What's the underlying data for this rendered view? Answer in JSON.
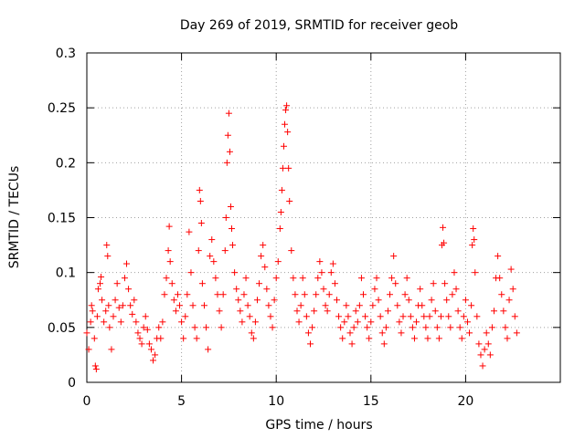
{
  "chart_data": {
    "type": "scatter",
    "title": "Day 269 of 2019, SRMTID for receiver geob",
    "xlabel": "GPS time / hours",
    "ylabel": "SRMTID / TECUs",
    "xlim": [
      0,
      25
    ],
    "ylim": [
      0,
      0.3
    ],
    "xticks": [
      0,
      5,
      10,
      15,
      20
    ],
    "yticks": [
      0,
      0.05,
      0.1,
      0.15,
      0.2,
      0.25,
      0.3
    ],
    "xtick_labels": [
      "0",
      "5",
      "10",
      "15",
      "20"
    ],
    "ytick_labels": [
      "0",
      "0.05",
      "0.1",
      "0.15",
      "0.2",
      "0.25",
      "0.3"
    ],
    "grid": true,
    "marker": "+",
    "marker_color": "#ff0000",
    "series": [
      {
        "name": "SRMTID",
        "points": [
          [
            0.0,
            0.045
          ],
          [
            0.1,
            0.03
          ],
          [
            0.2,
            0.055
          ],
          [
            0.25,
            0.07
          ],
          [
            0.3,
            0.065
          ],
          [
            0.4,
            0.04
          ],
          [
            0.45,
            0.015
          ],
          [
            0.5,
            0.012
          ],
          [
            0.55,
            0.06
          ],
          [
            0.6,
            0.085
          ],
          [
            0.7,
            0.09
          ],
          [
            0.75,
            0.096
          ],
          [
            0.8,
            0.075
          ],
          [
            0.9,
            0.055
          ],
          [
            1.0,
            0.065
          ],
          [
            1.05,
            0.125
          ],
          [
            1.1,
            0.115
          ],
          [
            1.15,
            0.07
          ],
          [
            1.2,
            0.05
          ],
          [
            1.3,
            0.03
          ],
          [
            1.4,
            0.06
          ],
          [
            1.5,
            0.075
          ],
          [
            1.6,
            0.09
          ],
          [
            1.7,
            0.068
          ],
          [
            1.8,
            0.055
          ],
          [
            1.9,
            0.07
          ],
          [
            2.0,
            0.095
          ],
          [
            2.1,
            0.108
          ],
          [
            2.2,
            0.085
          ],
          [
            2.3,
            0.07
          ],
          [
            2.4,
            0.062
          ],
          [
            2.5,
            0.075
          ],
          [
            2.6,
            0.055
          ],
          [
            2.7,
            0.045
          ],
          [
            2.8,
            0.04
          ],
          [
            2.9,
            0.035
          ],
          [
            3.0,
            0.05
          ],
          [
            3.1,
            0.06
          ],
          [
            3.2,
            0.048
          ],
          [
            3.3,
            0.035
          ],
          [
            3.4,
            0.03
          ],
          [
            3.5,
            0.02
          ],
          [
            3.6,
            0.025
          ],
          [
            3.7,
            0.04
          ],
          [
            3.8,
            0.05
          ],
          [
            3.9,
            0.04
          ],
          [
            4.0,
            0.055
          ],
          [
            4.1,
            0.08
          ],
          [
            4.2,
            0.095
          ],
          [
            4.3,
            0.12
          ],
          [
            4.35,
            0.142
          ],
          [
            4.4,
            0.11
          ],
          [
            4.5,
            0.09
          ],
          [
            4.6,
            0.075
          ],
          [
            4.7,
            0.065
          ],
          [
            4.8,
            0.08
          ],
          [
            4.9,
            0.07
          ],
          [
            5.0,
            0.055
          ],
          [
            5.1,
            0.04
          ],
          [
            5.2,
            0.06
          ],
          [
            5.3,
            0.08
          ],
          [
            5.4,
            0.137
          ],
          [
            5.5,
            0.1
          ],
          [
            5.6,
            0.07
          ],
          [
            5.7,
            0.05
          ],
          [
            5.8,
            0.04
          ],
          [
            5.9,
            0.12
          ],
          [
            5.95,
            0.175
          ],
          [
            6.0,
            0.165
          ],
          [
            6.05,
            0.145
          ],
          [
            6.1,
            0.09
          ],
          [
            6.2,
            0.07
          ],
          [
            6.3,
            0.05
          ],
          [
            6.4,
            0.03
          ],
          [
            6.5,
            0.115
          ],
          [
            6.6,
            0.13
          ],
          [
            6.7,
            0.11
          ],
          [
            6.8,
            0.095
          ],
          [
            6.9,
            0.08
          ],
          [
            7.0,
            0.065
          ],
          [
            7.1,
            0.05
          ],
          [
            7.2,
            0.08
          ],
          [
            7.3,
            0.12
          ],
          [
            7.35,
            0.15
          ],
          [
            7.4,
            0.2
          ],
          [
            7.45,
            0.225
          ],
          [
            7.5,
            0.245
          ],
          [
            7.55,
            0.21
          ],
          [
            7.6,
            0.16
          ],
          [
            7.65,
            0.14
          ],
          [
            7.7,
            0.125
          ],
          [
            7.8,
            0.1
          ],
          [
            7.9,
            0.085
          ],
          [
            8.0,
            0.075
          ],
          [
            8.1,
            0.065
          ],
          [
            8.2,
            0.055
          ],
          [
            8.3,
            0.08
          ],
          [
            8.4,
            0.095
          ],
          [
            8.5,
            0.07
          ],
          [
            8.6,
            0.06
          ],
          [
            8.7,
            0.045
          ],
          [
            8.8,
            0.04
          ],
          [
            8.9,
            0.055
          ],
          [
            9.0,
            0.075
          ],
          [
            9.1,
            0.09
          ],
          [
            9.2,
            0.115
          ],
          [
            9.3,
            0.125
          ],
          [
            9.4,
            0.105
          ],
          [
            9.5,
            0.085
          ],
          [
            9.6,
            0.07
          ],
          [
            9.7,
            0.06
          ],
          [
            9.8,
            0.05
          ],
          [
            9.9,
            0.075
          ],
          [
            10.0,
            0.095
          ],
          [
            10.1,
            0.11
          ],
          [
            10.2,
            0.14
          ],
          [
            10.25,
            0.155
          ],
          [
            10.3,
            0.175
          ],
          [
            10.35,
            0.195
          ],
          [
            10.4,
            0.215
          ],
          [
            10.45,
            0.235
          ],
          [
            10.5,
            0.248
          ],
          [
            10.55,
            0.252
          ],
          [
            10.6,
            0.228
          ],
          [
            10.65,
            0.195
          ],
          [
            10.7,
            0.165
          ],
          [
            10.8,
            0.12
          ],
          [
            10.9,
            0.095
          ],
          [
            11.0,
            0.08
          ],
          [
            11.1,
            0.065
          ],
          [
            11.2,
            0.055
          ],
          [
            11.3,
            0.07
          ],
          [
            11.4,
            0.095
          ],
          [
            11.5,
            0.08
          ],
          [
            11.6,
            0.06
          ],
          [
            11.7,
            0.045
          ],
          [
            11.8,
            0.035
          ],
          [
            11.9,
            0.05
          ],
          [
            12.0,
            0.065
          ],
          [
            12.1,
            0.08
          ],
          [
            12.2,
            0.095
          ],
          [
            12.3,
            0.11
          ],
          [
            12.4,
            0.1
          ],
          [
            12.5,
            0.085
          ],
          [
            12.6,
            0.07
          ],
          [
            12.7,
            0.065
          ],
          [
            12.8,
            0.08
          ],
          [
            12.9,
            0.1
          ],
          [
            13.0,
            0.108
          ],
          [
            13.1,
            0.09
          ],
          [
            13.2,
            0.075
          ],
          [
            13.3,
            0.06
          ],
          [
            13.4,
            0.05
          ],
          [
            13.5,
            0.04
          ],
          [
            13.6,
            0.055
          ],
          [
            13.7,
            0.07
          ],
          [
            13.8,
            0.06
          ],
          [
            13.9,
            0.045
          ],
          [
            14.0,
            0.035
          ],
          [
            14.1,
            0.05
          ],
          [
            14.2,
            0.065
          ],
          [
            14.3,
            0.055
          ],
          [
            14.4,
            0.07
          ],
          [
            14.5,
            0.095
          ],
          [
            14.6,
            0.08
          ],
          [
            14.7,
            0.06
          ],
          [
            14.8,
            0.05
          ],
          [
            14.9,
            0.04
          ],
          [
            15.0,
            0.055
          ],
          [
            15.1,
            0.07
          ],
          [
            15.2,
            0.085
          ],
          [
            15.3,
            0.095
          ],
          [
            15.4,
            0.075
          ],
          [
            15.5,
            0.06
          ],
          [
            15.6,
            0.045
          ],
          [
            15.7,
            0.035
          ],
          [
            15.8,
            0.05
          ],
          [
            15.9,
            0.065
          ],
          [
            16.0,
            0.08
          ],
          [
            16.1,
            0.095
          ],
          [
            16.2,
            0.115
          ],
          [
            16.3,
            0.09
          ],
          [
            16.4,
            0.07
          ],
          [
            16.5,
            0.055
          ],
          [
            16.6,
            0.045
          ],
          [
            16.7,
            0.06
          ],
          [
            16.8,
            0.08
          ],
          [
            16.9,
            0.095
          ],
          [
            17.0,
            0.075
          ],
          [
            17.1,
            0.06
          ],
          [
            17.2,
            0.05
          ],
          [
            17.3,
            0.04
          ],
          [
            17.4,
            0.055
          ],
          [
            17.5,
            0.07
          ],
          [
            17.6,
            0.085
          ],
          [
            17.7,
            0.07
          ],
          [
            17.8,
            0.06
          ],
          [
            17.9,
            0.05
          ],
          [
            18.0,
            0.04
          ],
          [
            18.1,
            0.06
          ],
          [
            18.2,
            0.075
          ],
          [
            18.3,
            0.09
          ],
          [
            18.4,
            0.065
          ],
          [
            18.5,
            0.05
          ],
          [
            18.6,
            0.04
          ],
          [
            18.7,
            0.06
          ],
          [
            18.75,
            0.125
          ],
          [
            18.8,
            0.141
          ],
          [
            18.85,
            0.127
          ],
          [
            18.9,
            0.09
          ],
          [
            19.0,
            0.075
          ],
          [
            19.1,
            0.06
          ],
          [
            19.2,
            0.05
          ],
          [
            19.3,
            0.08
          ],
          [
            19.4,
            0.1
          ],
          [
            19.5,
            0.085
          ],
          [
            19.6,
            0.065
          ],
          [
            19.7,
            0.05
          ],
          [
            19.8,
            0.04
          ],
          [
            19.9,
            0.06
          ],
          [
            20.0,
            0.075
          ],
          [
            20.1,
            0.055
          ],
          [
            20.2,
            0.045
          ],
          [
            20.3,
            0.07
          ],
          [
            20.35,
            0.125
          ],
          [
            20.4,
            0.14
          ],
          [
            20.45,
            0.13
          ],
          [
            20.5,
            0.1
          ],
          [
            20.6,
            0.06
          ],
          [
            20.7,
            0.035
          ],
          [
            20.8,
            0.025
          ],
          [
            20.9,
            0.015
          ],
          [
            21.0,
            0.03
          ],
          [
            21.1,
            0.045
          ],
          [
            21.2,
            0.035
          ],
          [
            21.3,
            0.025
          ],
          [
            21.4,
            0.05
          ],
          [
            21.5,
            0.065
          ],
          [
            21.6,
            0.095
          ],
          [
            21.7,
            0.115
          ],
          [
            21.8,
            0.095
          ],
          [
            21.9,
            0.08
          ],
          [
            22.0,
            0.065
          ],
          [
            22.1,
            0.05
          ],
          [
            22.2,
            0.04
          ],
          [
            22.3,
            0.075
          ],
          [
            22.4,
            0.103
          ],
          [
            22.5,
            0.085
          ],
          [
            22.6,
            0.06
          ],
          [
            22.7,
            0.045
          ]
        ]
      }
    ]
  }
}
